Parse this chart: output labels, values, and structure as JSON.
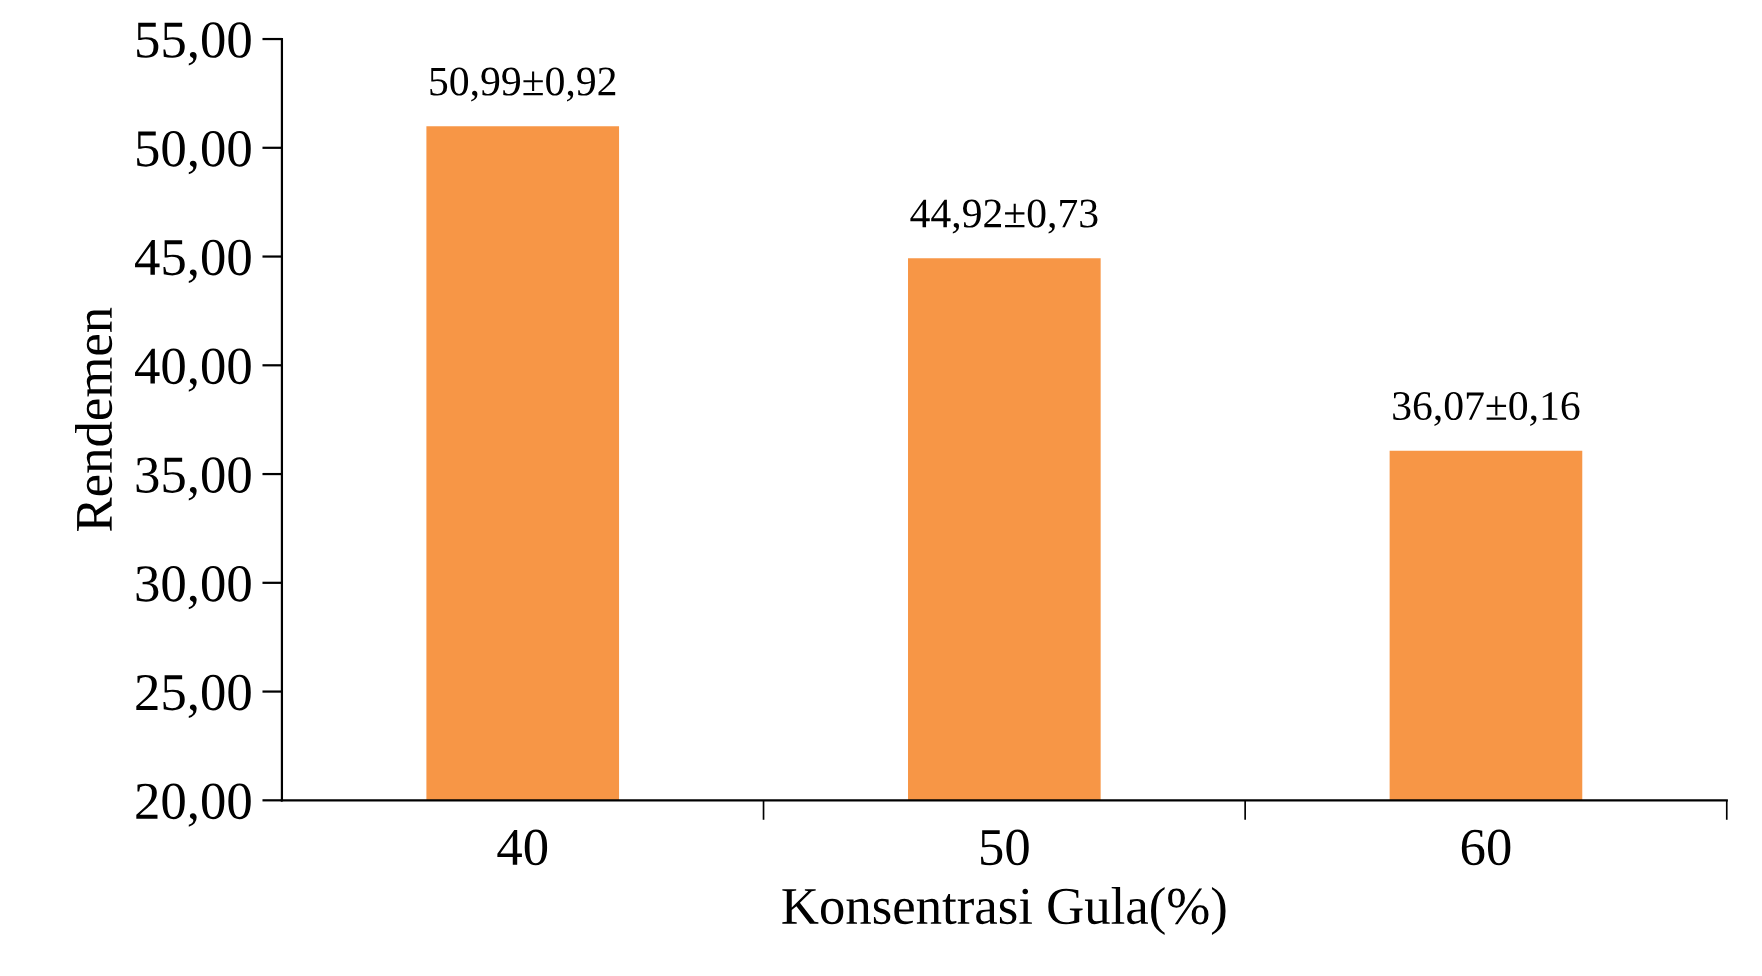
{
  "chart_data": {
    "type": "bar",
    "xlabel": "Konsentrasi Gula(%)",
    "ylabel": "Rendemen",
    "categories": [
      "40",
      "50",
      "60"
    ],
    "values": [
      50.99,
      44.92,
      36.07
    ],
    "color": "#f79646",
    "value_labels": [
      "50,99±0,92",
      "44,92±0,73",
      "36,07±0,16"
    ],
    "ylim": [
      20,
      55
    ],
    "yticks": [
      {
        "value": 20,
        "label": "20,00"
      },
      {
        "value": 25,
        "label": "25,00"
      },
      {
        "value": 30,
        "label": "30,00"
      },
      {
        "value": 35,
        "label": "35,00"
      },
      {
        "value": 40,
        "label": "40,00"
      },
      {
        "value": 45,
        "label": "45,00"
      },
      {
        "value": 50,
        "label": "50,00"
      },
      {
        "value": 55,
        "label": "55,00"
      }
    ],
    "grid": false,
    "legend": false
  }
}
